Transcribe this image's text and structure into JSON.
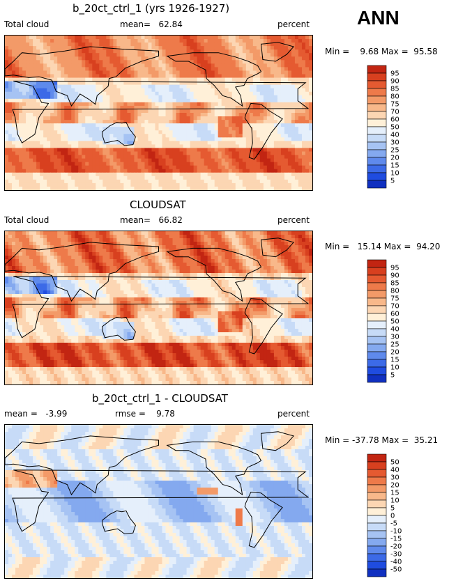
{
  "season": "ANN",
  "colors": {
    "positive_scale": [
      "#fff0d8",
      "#fcd6b3",
      "#f8b88a",
      "#f39a68",
      "#ee7a4a",
      "#e55a31",
      "#d8401f",
      "#c22512",
      "#9c0d08",
      "#750000"
    ],
    "negative_scale": [
      "#e5effb",
      "#c7dbf7",
      "#a6c3f3",
      "#84a9ef",
      "#5f8aec",
      "#3c6ae7",
      "#1f4ce0",
      "#1030c0",
      "#08209a",
      "#00106e"
    ]
  },
  "chart_data": [
    {
      "type": "heatmap",
      "title": "b_20ct_ctrl_1 (yrs 1926-1927)",
      "left_label": "Total cloud",
      "center_label": "mean=   62.84",
      "right_label": "percent",
      "min_max": "Min =    9.68 Max =  95.58",
      "min": 9.68,
      "max": 95.58,
      "mean": 62.84,
      "units": "percent",
      "levels": [
        5,
        10,
        15,
        20,
        25,
        30,
        40,
        50,
        60,
        70,
        75,
        80,
        85,
        90,
        95
      ]
    },
    {
      "type": "heatmap",
      "title": "CLOUDSAT",
      "left_label": "Total cloud",
      "center_label": "mean=   66.82",
      "right_label": "percent",
      "min_max": "Min =   15.14 Max =  94.20",
      "min": 15.14,
      "max": 94.2,
      "mean": 66.82,
      "units": "percent",
      "levels": [
        5,
        10,
        15,
        20,
        25,
        30,
        40,
        50,
        60,
        70,
        75,
        80,
        85,
        90,
        95
      ]
    },
    {
      "type": "heatmap",
      "title": "b_20ct_ctrl_1 - CLOUDSAT",
      "left_label": "mean =   -3.99",
      "center_label": "rmse =    9.78",
      "right_label": "percent",
      "min_max": "Min = -37.78 Max =  35.21",
      "min": -37.78,
      "max": 35.21,
      "mean": -3.99,
      "rmse": 9.78,
      "units": "percent",
      "levels": [
        -50,
        -40,
        -30,
        -20,
        -15,
        -10,
        -5,
        0,
        5,
        10,
        15,
        20,
        30,
        40,
        50
      ]
    }
  ]
}
